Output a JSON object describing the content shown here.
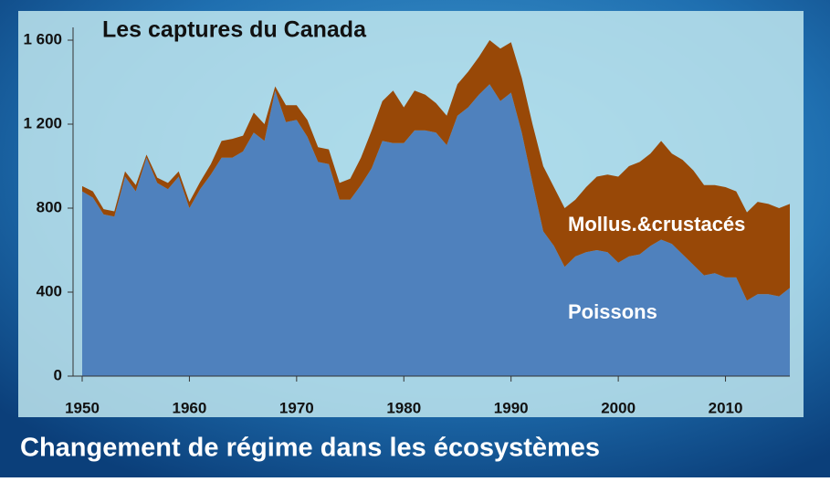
{
  "chart_data": {
    "type": "stacked_area",
    "title": "Les captures du Canada",
    "caption": "Changement de régime dans les écosystèmes",
    "x": [
      1950,
      1951,
      1952,
      1953,
      1954,
      1955,
      1956,
      1957,
      1958,
      1959,
      1960,
      1961,
      1962,
      1963,
      1964,
      1965,
      1966,
      1967,
      1968,
      1969,
      1970,
      1971,
      1972,
      1973,
      1974,
      1975,
      1976,
      1977,
      1978,
      1979,
      1980,
      1981,
      1982,
      1983,
      1984,
      1985,
      1986,
      1987,
      1988,
      1989,
      1990,
      1991,
      1992,
      1993,
      1994,
      1995,
      1996,
      1997,
      1998,
      1999,
      2000,
      2001,
      2002,
      2003,
      2004,
      2005,
      2006,
      2007,
      2008,
      2009,
      2010,
      2011,
      2012,
      2013,
      2014,
      2015,
      2016
    ],
    "series": [
      {
        "name": "Poissons",
        "color": "#4f81bd",
        "values": [
          880,
          850,
          770,
          760,
          950,
          880,
          1040,
          920,
          890,
          950,
          800,
          890,
          960,
          1040,
          1040,
          1070,
          1160,
          1120,
          1360,
          1210,
          1220,
          1140,
          1020,
          1010,
          840,
          840,
          910,
          990,
          1120,
          1110,
          1110,
          1170,
          1170,
          1160,
          1100,
          1240,
          1280,
          1340,
          1390,
          1310,
          1350,
          1160,
          920,
          690,
          620,
          520,
          570,
          590,
          600,
          590,
          540,
          570,
          580,
          620,
          650,
          630,
          580,
          530,
          480,
          490,
          470,
          470,
          360,
          390,
          390,
          380,
          420
        ]
      },
      {
        "name": "Mollus.&crustacés",
        "color": "#984807",
        "values": [
          25,
          30,
          25,
          25,
          25,
          30,
          15,
          25,
          30,
          25,
          30,
          35,
          50,
          80,
          90,
          75,
          95,
          80,
          20,
          80,
          70,
          80,
          70,
          70,
          80,
          100,
          130,
          180,
          190,
          250,
          170,
          190,
          170,
          140,
          140,
          150,
          170,
          180,
          210,
          250,
          240,
          260,
          280,
          310,
          280,
          280,
          270,
          310,
          350,
          370,
          410,
          430,
          440,
          440,
          470,
          430,
          450,
          450,
          430,
          420,
          430,
          410,
          420,
          440,
          430,
          420,
          400
        ]
      }
    ],
    "xlim": [
      1950,
      2016
    ],
    "xticks": [
      1950,
      1960,
      1970,
      1980,
      1990,
      2000,
      2010
    ],
    "ylim": [
      0,
      1600
    ],
    "yticks": [
      0,
      400,
      800,
      {
        "value": 1200,
        "label": "1 200"
      },
      {
        "value": 1600,
        "label": "1 600"
      }
    ]
  }
}
